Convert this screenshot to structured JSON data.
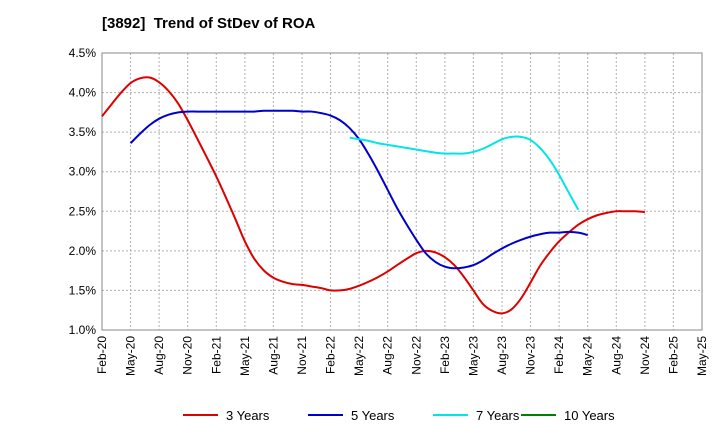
{
  "chart_data": {
    "type": "line",
    "title": "[3892]  Trend of StDev of ROA",
    "xlabel": "",
    "ylabel": "",
    "ylim": [
      1.0,
      4.5
    ],
    "yticks": [
      "1.0%",
      "1.5%",
      "2.0%",
      "2.5%",
      "3.0%",
      "3.5%",
      "4.0%",
      "4.5%"
    ],
    "ytick_values": [
      1.0,
      1.5,
      2.0,
      2.5,
      3.0,
      3.5,
      4.0,
      4.5
    ],
    "categories": [
      "Feb-20",
      "May-20",
      "Aug-20",
      "Nov-20",
      "Feb-21",
      "May-21",
      "Aug-21",
      "Nov-21",
      "Feb-22",
      "May-22",
      "Aug-22",
      "Nov-22",
      "Feb-23",
      "May-23",
      "Aug-23",
      "Nov-23",
      "Feb-24",
      "May-24",
      "Aug-24",
      "Nov-24",
      "Feb-25",
      "May-25"
    ],
    "grid": true,
    "legend_position": "bottom",
    "series": [
      {
        "name": "3 Years",
        "color": "#dd0000",
        "points": [
          [
            0,
            3.7
          ],
          [
            0.33,
            3.85
          ],
          [
            0.67,
            4.0
          ],
          [
            1.0,
            4.12
          ],
          [
            1.33,
            4.18
          ],
          [
            1.67,
            4.19
          ],
          [
            2.0,
            4.13
          ],
          [
            2.33,
            4.02
          ],
          [
            2.67,
            3.86
          ],
          [
            3.0,
            3.65
          ],
          [
            3.33,
            3.42
          ],
          [
            3.67,
            3.18
          ],
          [
            4.0,
            2.94
          ],
          [
            4.33,
            2.68
          ],
          [
            4.67,
            2.4
          ],
          [
            5.0,
            2.12
          ],
          [
            5.33,
            1.9
          ],
          [
            5.67,
            1.75
          ],
          [
            6.0,
            1.66
          ],
          [
            6.33,
            1.61
          ],
          [
            6.67,
            1.58
          ],
          [
            7.0,
            1.57
          ],
          [
            7.33,
            1.55
          ],
          [
            7.67,
            1.53
          ],
          [
            8.0,
            1.5
          ],
          [
            8.33,
            1.5
          ],
          [
            8.67,
            1.52
          ],
          [
            9.0,
            1.56
          ],
          [
            9.33,
            1.61
          ],
          [
            9.67,
            1.67
          ],
          [
            10.0,
            1.74
          ],
          [
            10.33,
            1.82
          ],
          [
            10.67,
            1.9
          ],
          [
            11.0,
            1.97
          ],
          [
            11.33,
            2.0
          ],
          [
            11.67,
            1.98
          ],
          [
            12.0,
            1.92
          ],
          [
            12.33,
            1.82
          ],
          [
            12.67,
            1.67
          ],
          [
            13.0,
            1.5
          ],
          [
            13.33,
            1.33
          ],
          [
            13.67,
            1.24
          ],
          [
            14.0,
            1.21
          ],
          [
            14.33,
            1.26
          ],
          [
            14.67,
            1.4
          ],
          [
            15.0,
            1.6
          ],
          [
            15.33,
            1.81
          ],
          [
            15.67,
            1.98
          ],
          [
            16.0,
            2.12
          ],
          [
            16.33,
            2.23
          ],
          [
            16.67,
            2.33
          ],
          [
            17.0,
            2.4
          ],
          [
            17.33,
            2.45
          ],
          [
            17.67,
            2.48
          ],
          [
            18.0,
            2.5
          ],
          [
            18.33,
            2.5
          ],
          [
            18.67,
            2.5
          ],
          [
            19.0,
            2.49
          ]
        ]
      },
      {
        "name": "5 Years",
        "color": "#0000cc",
        "points": [
          [
            1.0,
            3.36
          ],
          [
            1.33,
            3.48
          ],
          [
            1.67,
            3.59
          ],
          [
            2.0,
            3.67
          ],
          [
            2.33,
            3.72
          ],
          [
            2.67,
            3.75
          ],
          [
            3.0,
            3.76
          ],
          [
            3.33,
            3.76
          ],
          [
            3.67,
            3.76
          ],
          [
            4.0,
            3.76
          ],
          [
            4.33,
            3.76
          ],
          [
            4.67,
            3.76
          ],
          [
            5.0,
            3.76
          ],
          [
            5.33,
            3.76
          ],
          [
            5.67,
            3.77
          ],
          [
            6.0,
            3.77
          ],
          [
            6.33,
            3.77
          ],
          [
            6.67,
            3.77
          ],
          [
            7.0,
            3.76
          ],
          [
            7.33,
            3.76
          ],
          [
            7.67,
            3.74
          ],
          [
            8.0,
            3.71
          ],
          [
            8.33,
            3.65
          ],
          [
            8.67,
            3.55
          ],
          [
            9.0,
            3.41
          ],
          [
            9.33,
            3.22
          ],
          [
            9.67,
            3.0
          ],
          [
            10.0,
            2.77
          ],
          [
            10.33,
            2.54
          ],
          [
            10.67,
            2.33
          ],
          [
            11.0,
            2.14
          ],
          [
            11.33,
            1.97
          ],
          [
            11.67,
            1.86
          ],
          [
            12.0,
            1.8
          ],
          [
            12.33,
            1.78
          ],
          [
            12.67,
            1.79
          ],
          [
            13.0,
            1.82
          ],
          [
            13.33,
            1.88
          ],
          [
            13.67,
            1.96
          ],
          [
            14.0,
            2.03
          ],
          [
            14.33,
            2.09
          ],
          [
            14.67,
            2.14
          ],
          [
            15.0,
            2.18
          ],
          [
            15.33,
            2.21
          ],
          [
            15.67,
            2.23
          ],
          [
            16.0,
            2.23
          ],
          [
            16.33,
            2.24
          ],
          [
            16.67,
            2.23
          ],
          [
            17.0,
            2.2
          ]
        ]
      },
      {
        "name": "7 Years",
        "color": "#00e5e5",
        "points": [
          [
            8.67,
            3.43
          ],
          [
            9.0,
            3.41
          ],
          [
            9.33,
            3.39
          ],
          [
            9.67,
            3.36
          ],
          [
            10.0,
            3.34
          ],
          [
            10.33,
            3.32
          ],
          [
            10.67,
            3.3
          ],
          [
            11.0,
            3.28
          ],
          [
            11.33,
            3.26
          ],
          [
            11.67,
            3.24
          ],
          [
            12.0,
            3.23
          ],
          [
            12.33,
            3.23
          ],
          [
            12.67,
            3.23
          ],
          [
            13.0,
            3.25
          ],
          [
            13.33,
            3.29
          ],
          [
            13.67,
            3.35
          ],
          [
            14.0,
            3.41
          ],
          [
            14.33,
            3.44
          ],
          [
            14.67,
            3.44
          ],
          [
            15.0,
            3.4
          ],
          [
            15.33,
            3.3
          ],
          [
            15.67,
            3.15
          ],
          [
            16.0,
            2.96
          ],
          [
            16.33,
            2.74
          ],
          [
            16.67,
            2.52
          ]
        ]
      },
      {
        "name": "10 Years",
        "color": "#008000",
        "points": []
      }
    ]
  }
}
